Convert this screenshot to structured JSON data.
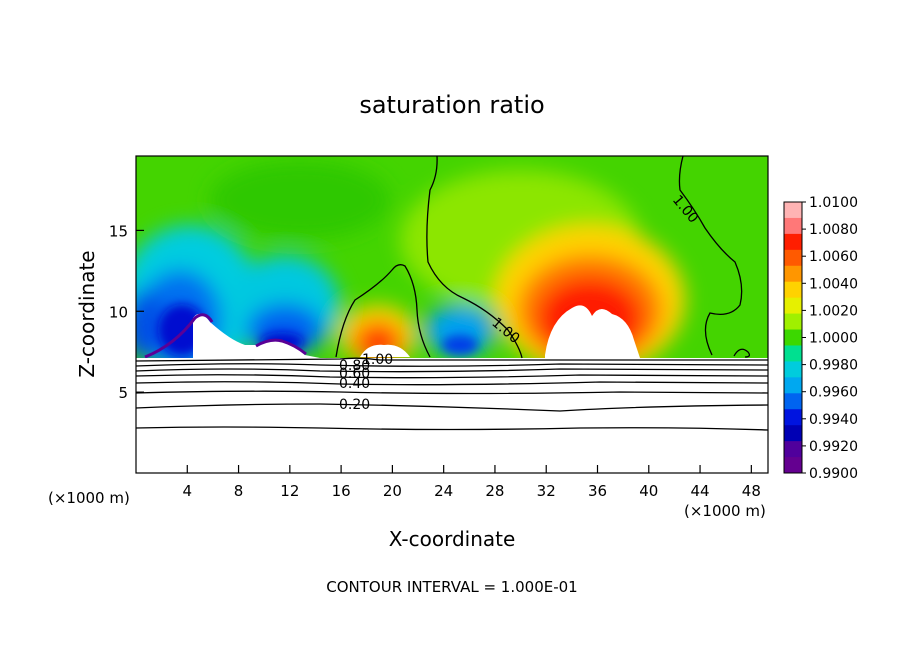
{
  "chart_data": {
    "type": "heatmap",
    "title": "saturation ratio",
    "xlabel": "X-coordinate",
    "ylabel": "Z-coordinate",
    "x_unit_left": "(×1000 m)",
    "x_unit_right": "(×1000 m)",
    "x_ticks": [
      4,
      8,
      12,
      16,
      20,
      24,
      28,
      32,
      36,
      40,
      44,
      48
    ],
    "y_ticks": [
      5,
      10,
      15
    ],
    "xlim": [
      0,
      49.3
    ],
    "ylim": [
      0,
      19.6
    ],
    "footer": "CONTOUR INTERVAL = 1.000E-01",
    "colorbar": {
      "labels": [
        "1.0100",
        "1.0080",
        "1.0060",
        "1.0040",
        "1.0020",
        "1.0000",
        "0.9980",
        "0.9960",
        "0.9940",
        "0.9920",
        "0.9900"
      ],
      "colors": [
        "#ffb4b4",
        "#ff7878",
        "#ff1e00",
        "#ff5a00",
        "#ff9600",
        "#ffd200",
        "#e6f000",
        "#a0f000",
        "#3cd800",
        "#00e090",
        "#00ccdd",
        "#00a8f0",
        "#0064f0",
        "#0014e0",
        "#0000b4",
        "#50009c",
        "#640090"
      ]
    },
    "contour_labels": [
      "1.00",
      "1.00",
      "1.00",
      "0.80",
      "0.60",
      "0.40",
      "0.20"
    ]
  }
}
